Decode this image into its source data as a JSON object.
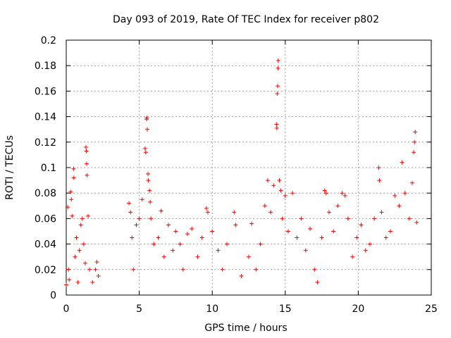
{
  "chart_data": {
    "type": "scatter",
    "title": "Day 093 of 2019, Rate Of TEC Index for receiver p802",
    "xlabel": "GPS time / hours",
    "ylabel": "ROTI / TECUs",
    "xlim": [
      0,
      25
    ],
    "ylim": [
      0,
      0.2
    ],
    "xticks": [
      0,
      5,
      10,
      15,
      20,
      25
    ],
    "yticks": [
      0,
      0.02,
      0.04,
      0.06,
      0.08,
      0.1,
      0.12,
      0.14,
      0.16,
      0.18,
      0.2
    ],
    "xtick_labels": [
      "0",
      "5",
      "10",
      "15",
      "20",
      "25"
    ],
    "ytick_labels": [
      "0",
      "0.02",
      "0.04",
      "0.06",
      "0.08",
      "0.1",
      "0.12",
      "0.14",
      "0.16",
      "0.18",
      "0.2"
    ],
    "grid": true,
    "legend": "none",
    "marker": "+",
    "marker_color": "#ff0000",
    "series": [
      {
        "points": [
          [
            0.0,
            0.008
          ],
          [
            0.1,
            0.069
          ],
          [
            0.15,
            0.02
          ],
          [
            0.2,
            0.012
          ],
          [
            0.3,
            0.081
          ],
          [
            0.35,
            0.075
          ],
          [
            0.4,
            0.062
          ],
          [
            0.5,
            0.099
          ],
          [
            0.52,
            0.092
          ],
          [
            0.6,
            0.03
          ],
          [
            0.7,
            0.045
          ],
          [
            0.8,
            0.01
          ],
          [
            0.9,
            0.035
          ],
          [
            1.0,
            0.055
          ],
          [
            1.1,
            0.06
          ],
          [
            1.2,
            0.04
          ],
          [
            1.3,
            0.025
          ],
          [
            1.35,
            0.116
          ],
          [
            1.38,
            0.113
          ],
          [
            1.4,
            0.103
          ],
          [
            1.42,
            0.094
          ],
          [
            1.5,
            0.062
          ],
          [
            1.6,
            0.02
          ],
          [
            1.8,
            0.01
          ],
          [
            2.0,
            0.02
          ],
          [
            2.1,
            0.026
          ],
          [
            2.2,
            0.015
          ],
          [
            4.3,
            0.072
          ],
          [
            4.4,
            0.065
          ],
          [
            4.5,
            0.045
          ],
          [
            4.6,
            0.02
          ],
          [
            4.8,
            0.055
          ],
          [
            5.0,
            0.06
          ],
          [
            5.2,
            0.075
          ],
          [
            5.4,
            0.115
          ],
          [
            5.45,
            0.112
          ],
          [
            5.5,
            0.138
          ],
          [
            5.52,
            0.139
          ],
          [
            5.55,
            0.13
          ],
          [
            5.6,
            0.095
          ],
          [
            5.62,
            0.09
          ],
          [
            5.7,
            0.082
          ],
          [
            5.75,
            0.073
          ],
          [
            5.8,
            0.06
          ],
          [
            6.0,
            0.04
          ],
          [
            6.3,
            0.045
          ],
          [
            6.5,
            0.066
          ],
          [
            6.7,
            0.03
          ],
          [
            7.0,
            0.055
          ],
          [
            7.3,
            0.035
          ],
          [
            7.5,
            0.05
          ],
          [
            7.8,
            0.04
          ],
          [
            8.0,
            0.02
          ],
          [
            8.3,
            0.048
          ],
          [
            8.6,
            0.052
          ],
          [
            9.0,
            0.03
          ],
          [
            9.3,
            0.045
          ],
          [
            9.6,
            0.068
          ],
          [
            9.7,
            0.065
          ],
          [
            10.0,
            0.05
          ],
          [
            10.4,
            0.035
          ],
          [
            10.7,
            0.02
          ],
          [
            11.0,
            0.04
          ],
          [
            11.5,
            0.065
          ],
          [
            11.6,
            0.055
          ],
          [
            12.0,
            0.015
          ],
          [
            12.5,
            0.03
          ],
          [
            12.7,
            0.056
          ],
          [
            13.0,
            0.02
          ],
          [
            13.3,
            0.04
          ],
          [
            13.6,
            0.07
          ],
          [
            13.8,
            0.09
          ],
          [
            14.0,
            0.065
          ],
          [
            14.2,
            0.086
          ],
          [
            14.4,
            0.134
          ],
          [
            14.42,
            0.131
          ],
          [
            14.45,
            0.158
          ],
          [
            14.48,
            0.164
          ],
          [
            14.5,
            0.178
          ],
          [
            14.52,
            0.184
          ],
          [
            14.6,
            0.09
          ],
          [
            14.7,
            0.082
          ],
          [
            14.8,
            0.06
          ],
          [
            15.0,
            0.078
          ],
          [
            15.2,
            0.05
          ],
          [
            15.5,
            0.08
          ],
          [
            15.8,
            0.045
          ],
          [
            16.1,
            0.06
          ],
          [
            16.4,
            0.035
          ],
          [
            16.7,
            0.052
          ],
          [
            17.0,
            0.02
          ],
          [
            17.2,
            0.01
          ],
          [
            17.5,
            0.045
          ],
          [
            17.7,
            0.082
          ],
          [
            17.8,
            0.08
          ],
          [
            18.0,
            0.065
          ],
          [
            18.3,
            0.05
          ],
          [
            18.6,
            0.07
          ],
          [
            18.9,
            0.08
          ],
          [
            19.1,
            0.078
          ],
          [
            19.3,
            0.06
          ],
          [
            19.6,
            0.03
          ],
          [
            19.9,
            0.045
          ],
          [
            20.2,
            0.055
          ],
          [
            20.5,
            0.035
          ],
          [
            20.8,
            0.04
          ],
          [
            21.1,
            0.06
          ],
          [
            21.4,
            0.1
          ],
          [
            21.45,
            0.09
          ],
          [
            21.6,
            0.065
          ],
          [
            21.9,
            0.045
          ],
          [
            22.2,
            0.05
          ],
          [
            22.5,
            0.078
          ],
          [
            22.8,
            0.07
          ],
          [
            23.0,
            0.104
          ],
          [
            23.2,
            0.08
          ],
          [
            23.5,
            0.06
          ],
          [
            23.7,
            0.088
          ],
          [
            23.8,
            0.112
          ],
          [
            23.85,
            0.12
          ],
          [
            23.9,
            0.128
          ],
          [
            24.0,
            0.057
          ]
        ]
      }
    ]
  }
}
